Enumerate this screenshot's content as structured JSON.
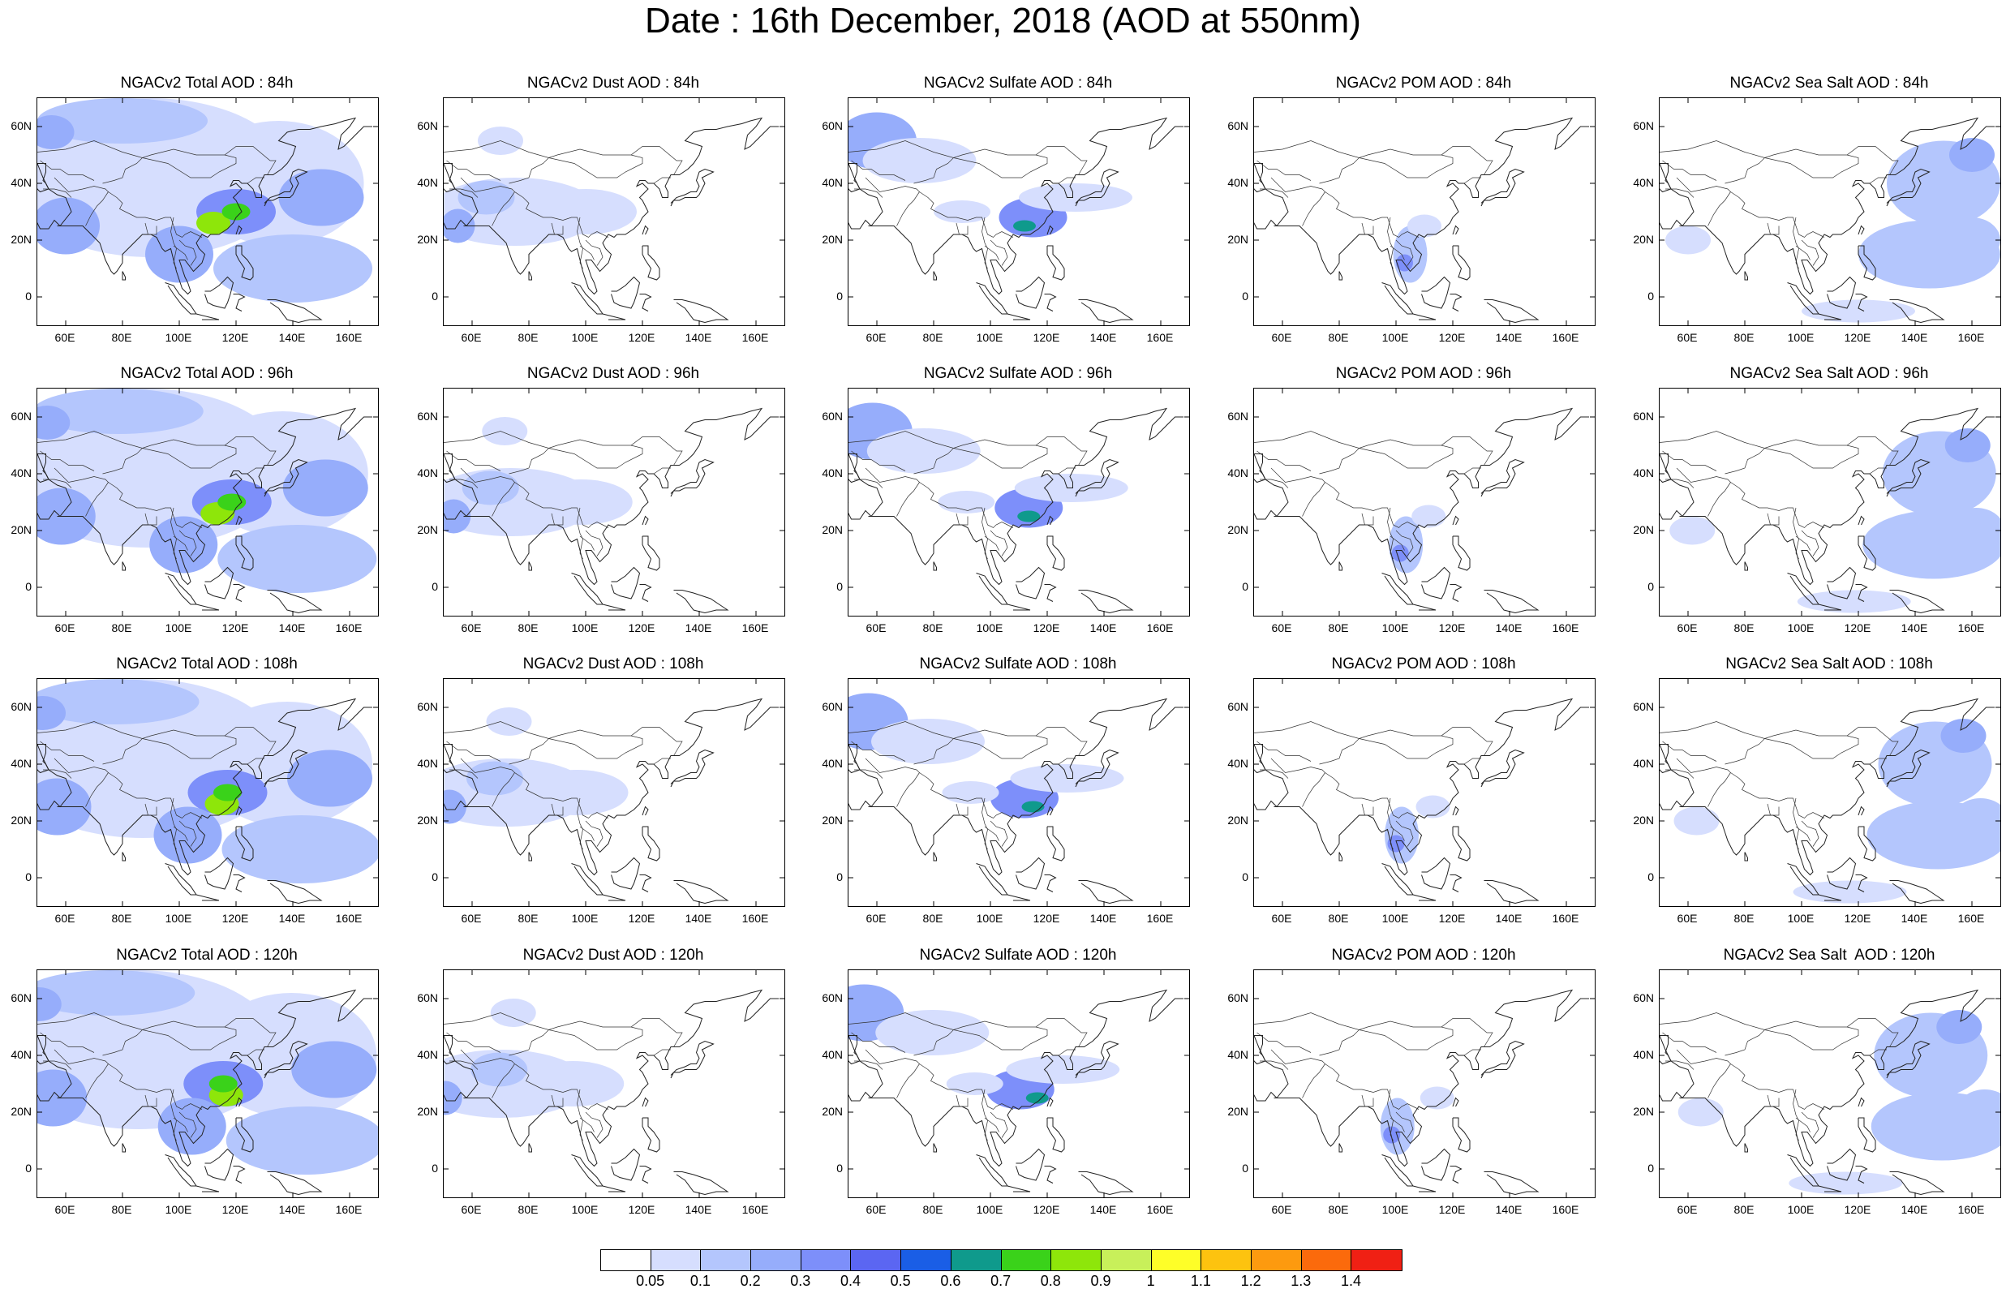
{
  "title": "Date : 16th December, 2018 (AOD at 550nm)",
  "lat_labels": [
    "60N",
    "40N",
    "20N",
    "0"
  ],
  "lon_labels": [
    "60E",
    "80E",
    "100E",
    "120E",
    "140E",
    "160E"
  ],
  "colorbar": {
    "labels": [
      "0.05",
      "0.1",
      "0.2",
      "0.3",
      "0.4",
      "0.5",
      "0.6",
      "0.7",
      "0.8",
      "0.9",
      "1",
      "1.1",
      "1.2",
      "1.3",
      "1.4"
    ],
    "colors": [
      "#ffffff",
      "#d6defe",
      "#b4c6fd",
      "#96adfb",
      "#7d8ffa",
      "#5b66f2",
      "#1a5ee6",
      "#0f9a8c",
      "#3ad21a",
      "#8ee60a",
      "#c8f05a",
      "#fefe28",
      "#fdc30f",
      "#fd9a0f",
      "#fb6a0c",
      "#f02014"
    ]
  },
  "rows": [
    {
      "hour": "84h",
      "panels": [
        {
          "title": "NGACv2 Total AOD : 84h",
          "species": "total"
        },
        {
          "title": "NGACv2 Dust AOD : 84h",
          "species": "dust"
        },
        {
          "title": "NGACv2 Sulfate AOD : 84h",
          "species": "sulfate"
        },
        {
          "title": "NGACv2 POM AOD : 84h",
          "species": "pom"
        },
        {
          "title": "NGACv2 Sea Salt AOD : 84h",
          "species": "seasalt"
        }
      ]
    },
    {
      "hour": "96h",
      "panels": [
        {
          "title": "NGACv2 Total AOD : 96h",
          "species": "total"
        },
        {
          "title": "NGACv2 Dust AOD : 96h",
          "species": "dust"
        },
        {
          "title": "NGACv2 Sulfate AOD : 96h",
          "species": "sulfate"
        },
        {
          "title": "NGACv2 POM AOD : 96h",
          "species": "pom"
        },
        {
          "title": "NGACv2 Sea Salt AOD : 96h",
          "species": "seasalt"
        }
      ]
    },
    {
      "hour": "108h",
      "panels": [
        {
          "title": "NGACv2 Total AOD : 108h",
          "species": "total"
        },
        {
          "title": "NGACv2 Dust AOD : 108h",
          "species": "dust"
        },
        {
          "title": "NGACv2 Sulfate AOD : 108h",
          "species": "sulfate"
        },
        {
          "title": "NGACv2 POM AOD : 108h",
          "species": "pom"
        },
        {
          "title": "NGACv2 Sea Salt AOD : 108h",
          "species": "seasalt"
        }
      ]
    },
    {
      "hour": "120h",
      "panels": [
        {
          "title": "NGACv2 Total AOD : 120h",
          "species": "total"
        },
        {
          "title": "NGACv2 Dust AOD : 120h",
          "species": "dust"
        },
        {
          "title": "NGACv2 Sulfate AOD : 120h",
          "species": "sulfate"
        },
        {
          "title": "NGACv2 POM AOD : 120h",
          "species": "pom"
        },
        {
          "title": "NGACv2 Sea Salt  AOD : 120h",
          "species": "seasalt"
        }
      ]
    }
  ]
}
